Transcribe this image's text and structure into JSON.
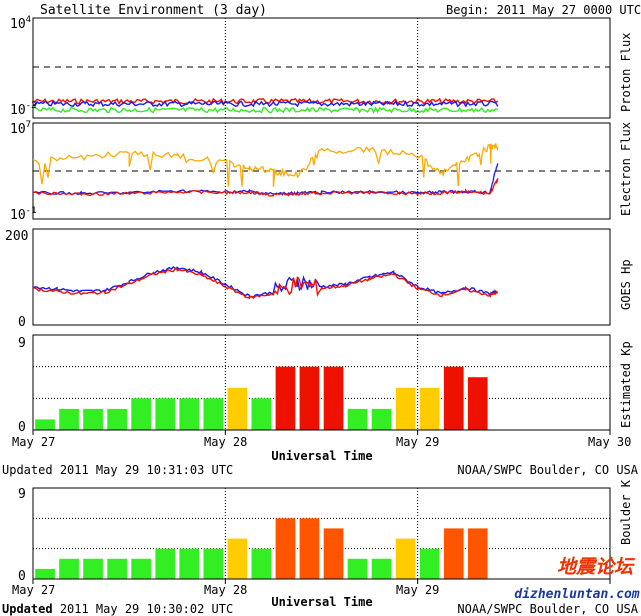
{
  "header": {
    "title": "Satellite Environment (3 day)",
    "begin": "Begin:  2011 May 27 0000 UTC"
  },
  "panels": {
    "proton": {
      "label": "Proton Flux",
      "y_top_base": "10",
      "y_top_exp": "4",
      "y_bot_base": "10",
      "y_bot_exp": "-2"
    },
    "electron": {
      "label": "Electron Flux",
      "y_top_base": "10",
      "y_top_exp": "7",
      "y_bot_base": "10",
      "y_bot_exp": "-1"
    },
    "goes": {
      "label": "GOES Hp",
      "y_top": "200",
      "y_bot": "0"
    },
    "kp": {
      "label": "Estimated Kp",
      "y_top": "9",
      "y_bot": "0"
    },
    "boulder": {
      "label": "Boulder K",
      "y_top": "9",
      "y_bot": "0"
    }
  },
  "axis": {
    "day_labels": [
      "May 27",
      "May 28",
      "May 29",
      "May 30"
    ],
    "xlabel": "Universal Time"
  },
  "updated_1": {
    "prefix": "Updated",
    "time": "2011 May 29 10:31:03 UTC",
    "credit": "NOAA/SWPC Boulder, CO USA"
  },
  "updated_2": {
    "prefix": "Updated",
    "time": "2011 May 29 10:30:02 UTC",
    "credit": "NOAA/SWPC Boulder, CO USA"
  },
  "watermark": {
    "cn": "地震论坛",
    "url": "dizhenluntan.com"
  },
  "colors": {
    "green": "#33ee22",
    "yellow": "#ffcc00",
    "orange": "#ff5500",
    "red": "#ee1100",
    "blue": "#1a1aee",
    "gold": "#ffaa00"
  },
  "chart_data": [
    {
      "type": "bar",
      "name": "Estimated Kp",
      "x_unit": "3-hour interval index from 2011 May 27 0000 UTC",
      "ylim": [
        0,
        9
      ],
      "values": [
        1,
        2,
        2,
        2,
        3,
        3,
        3,
        3,
        4,
        3,
        6,
        6,
        6,
        2,
        2,
        4,
        4,
        6,
        5
      ],
      "colors": [
        "green",
        "green",
        "green",
        "green",
        "green",
        "green",
        "green",
        "green",
        "yellow",
        "green",
        "red",
        "red",
        "red",
        "green",
        "green",
        "yellow",
        "yellow",
        "red",
        "red"
      ]
    },
    {
      "type": "bar",
      "name": "Boulder K",
      "ylim": [
        0,
        9
      ],
      "values": [
        1,
        2,
        2,
        2,
        2,
        3,
        3,
        3,
        4,
        3,
        6,
        6,
        5,
        2,
        2,
        4,
        3,
        5,
        5
      ],
      "colors": [
        "green",
        "green",
        "green",
        "green",
        "green",
        "green",
        "green",
        "green",
        "yellow",
        "green",
        "orange",
        "orange",
        "orange",
        "green",
        "green",
        "yellow",
        "green",
        "orange",
        "orange"
      ]
    },
    {
      "type": "line",
      "name": "GOES Hp",
      "x_unit": "hours from 2011 May 27 0000 UTC",
      "ylim": [
        0,
        200
      ],
      "series": [
        {
          "color": "blue",
          "x": [
            0,
            3,
            6,
            9,
            12,
            15,
            18,
            21,
            24,
            27,
            30,
            33,
            36,
            39,
            42,
            45,
            48,
            51,
            54,
            57,
            58
          ],
          "y": [
            80,
            75,
            70,
            72,
            90,
            110,
            120,
            110,
            85,
            60,
            68,
            92,
            80,
            85,
            100,
            110,
            80,
            65,
            78,
            65,
            70
          ]
        },
        {
          "color": "red",
          "x": [
            0,
            3,
            6,
            9,
            12,
            15,
            18,
            21,
            24,
            27,
            30,
            33,
            36,
            39,
            42,
            45,
            48,
            51,
            54,
            57,
            58
          ],
          "y": [
            75,
            70,
            65,
            68,
            86,
            106,
            116,
            104,
            80,
            57,
            65,
            88,
            76,
            82,
            96,
            106,
            76,
            62,
            74,
            62,
            68
          ]
        }
      ]
    },
    {
      "type": "line",
      "name": "Electron Flux",
      "yscale": "log",
      "ylim": [
        0.1,
        10000000
      ],
      "series": [
        {
          "color": "gold",
          "x": [
            0,
            6,
            12,
            18,
            24,
            27,
            30,
            33,
            36,
            42,
            48,
            51,
            54,
            57,
            58
          ],
          "y": [
            6000,
            15000,
            30000,
            20000,
            5000,
            2000,
            900,
            500,
            50000,
            60000,
            20000,
            600,
            8000,
            100000,
            120000
          ]
        },
        {
          "color": "blue",
          "x": [
            0,
            6,
            12,
            18,
            24,
            27,
            30,
            33,
            36,
            42,
            48,
            51,
            54,
            57,
            58
          ],
          "y": [
            15,
            14,
            15,
            22,
            18,
            20,
            12,
            15,
            16,
            18,
            15,
            17,
            20,
            16,
            5000
          ]
        },
        {
          "color": "red",
          "x": [
            0,
            6,
            12,
            18,
            24,
            27,
            30,
            33,
            36,
            42,
            48,
            51,
            54,
            57,
            58
          ],
          "y": [
            14,
            12,
            13,
            18,
            16,
            17,
            10,
            13,
            14,
            16,
            13,
            15,
            18,
            14,
            200
          ]
        }
      ]
    },
    {
      "type": "line",
      "name": "Proton Flux",
      "yscale": "log",
      "ylim": [
        0.01,
        10000
      ],
      "threshold": 10,
      "series": [
        {
          "color": "red",
          "x": [
            0,
            58
          ],
          "y": [
            0.1,
            0.1
          ]
        },
        {
          "color": "blue",
          "x": [
            0,
            58
          ],
          "y": [
            0.07,
            0.07
          ]
        },
        {
          "color": "green",
          "x": [
            0,
            58
          ],
          "y": [
            0.03,
            0.03
          ]
        }
      ]
    }
  ]
}
